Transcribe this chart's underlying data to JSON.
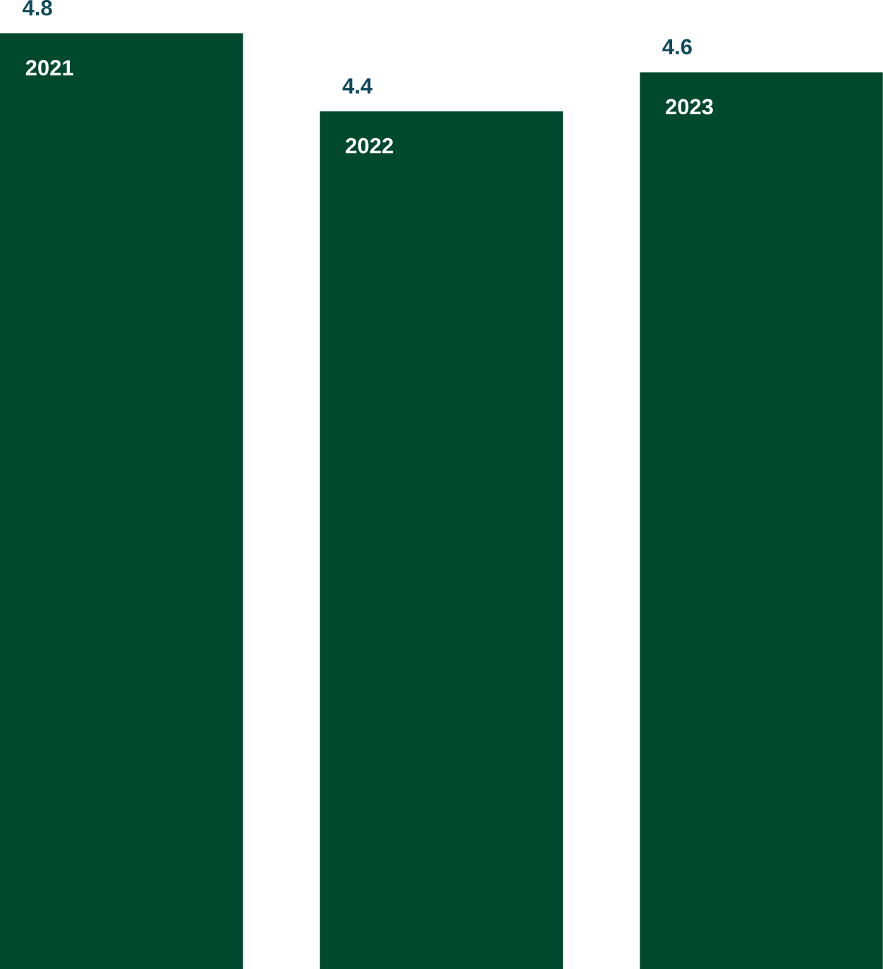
{
  "chart_data": {
    "type": "bar",
    "categories": [
      "2021",
      "2022",
      "2023"
    ],
    "values": [
      4.8,
      4.4,
      4.6
    ],
    "color": "#01492e",
    "data_labels": true
  }
}
